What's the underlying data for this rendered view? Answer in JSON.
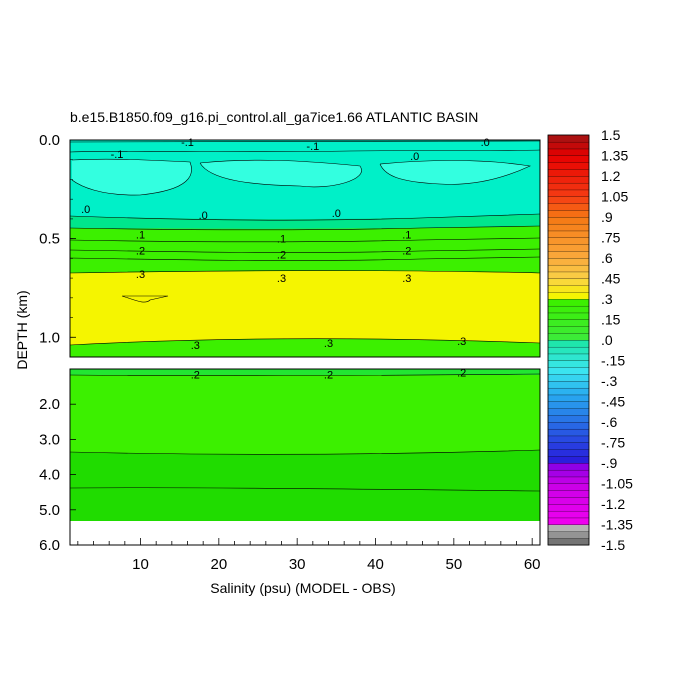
{
  "chart_data": {
    "type": "contour",
    "title": "b.e15.B1850.f09_g16.pi_control.all_ga7ice1.66 ATLANTIC BASIN",
    "xlabel": "Salinity (psu) (MODEL - OBS)",
    "ylabel": "DEPTH (km)",
    "xlim": [
      1,
      61
    ],
    "x_ticks": [
      "10",
      "20",
      "30",
      "40",
      "50",
      "60"
    ],
    "top_panel": {
      "ylim": [
        0,
        1.1
      ],
      "y_ticks": [
        "0.0",
        "0.5",
        "1.0"
      ]
    },
    "bottom_panel": {
      "ylim": [
        1.0,
        6.0
      ],
      "y_ticks": [
        "2.0",
        "3.0",
        "4.0",
        "5.0",
        "6.0"
      ]
    },
    "contour_labels_top": [
      {
        "text": "-.1",
        "x": 16,
        "y": 0.01
      },
      {
        "text": "-.1",
        "x": 32,
        "y": 0.03
      },
      {
        "text": ".0",
        "x": 54,
        "y": 0.01
      },
      {
        "text": "-.1",
        "x": 7,
        "y": 0.07
      },
      {
        "text": ".0",
        "x": 45,
        "y": 0.08
      },
      {
        "text": ".0",
        "x": 3,
        "y": 0.35
      },
      {
        "text": ".0",
        "x": 18,
        "y": 0.38
      },
      {
        "text": ".0",
        "x": 35,
        "y": 0.37
      },
      {
        "text": ".1",
        "x": 10,
        "y": 0.48
      },
      {
        "text": ".1",
        "x": 28,
        "y": 0.5
      },
      {
        "text": ".1",
        "x": 44,
        "y": 0.48
      },
      {
        "text": ".2",
        "x": 10,
        "y": 0.56
      },
      {
        "text": ".2",
        "x": 28,
        "y": 0.58
      },
      {
        "text": ".2",
        "x": 44,
        "y": 0.56
      },
      {
        "text": ".3",
        "x": 10,
        "y": 0.68
      },
      {
        "text": ".3",
        "x": 28,
        "y": 0.7
      },
      {
        "text": ".3",
        "x": 44,
        "y": 0.7
      },
      {
        "text": ".3",
        "x": 17,
        "y": 1.04
      },
      {
        "text": ".3",
        "x": 34,
        "y": 1.03
      },
      {
        "text": ".3",
        "x": 51,
        "y": 1.02
      }
    ],
    "contour_labels_bottom": [
      {
        "text": ".2",
        "x": 17,
        "y": 1.15
      },
      {
        "text": ".2",
        "x": 34,
        "y": 1.15
      },
      {
        "text": ".2",
        "x": 51,
        "y": 1.1
      }
    ],
    "colorbar": {
      "labels": [
        "1.5",
        "1.35",
        "1.2",
        "1.05",
        ".9",
        ".75",
        ".6",
        ".45",
        ".3",
        ".15",
        ".0",
        "-.15",
        "-.3",
        "-.45",
        "-.6",
        "-.75",
        "-.9",
        "-1.05",
        "-1.2",
        "-1.35",
        "-1.5"
      ],
      "min": -1.5,
      "max": 1.5,
      "step": 0.05
    },
    "colors": {
      "cyan_light": "#33ffe0",
      "cyan": "#00f0c8",
      "teal_green": "#00e68c",
      "green_mid": "#22e632",
      "green": "#3cf000",
      "green_dark": "#20dc00",
      "yellow": "#f5f500",
      "white_patch": "#ffffff"
    }
  }
}
